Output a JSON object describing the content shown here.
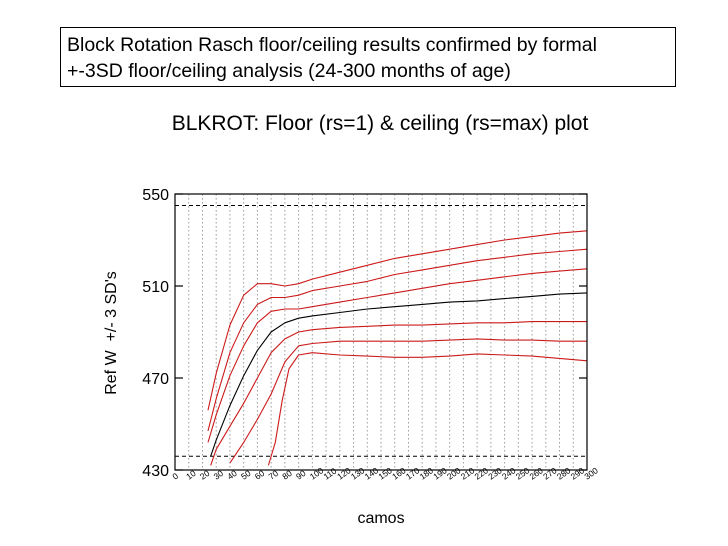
{
  "caption": {
    "line1": "Block Rotation Rasch floor/ceiling results confirmed by formal",
    "line2": "+-3SD floor/ceiling analysis (24-300 months of age)"
  },
  "colors": {
    "mean_line": "#000000",
    "sd_lines": "#cc1a1a",
    "grid": "#9a9a9a",
    "limit_lines": "#000000"
  },
  "chart_data": {
    "type": "line",
    "title": "BLKROT: Floor (rs=1) & ceiling (rs=max) plot",
    "xlabel": "camos",
    "ylabel": "Ref W  +/- 3 SD's",
    "xlim": [
      0,
      300
    ],
    "ylim": [
      430,
      550
    ],
    "x_ticks": [
      0,
      10,
      20,
      30,
      40,
      50,
      60,
      70,
      80,
      90,
      100,
      110,
      120,
      130,
      140,
      150,
      160,
      170,
      180,
      190,
      200,
      210,
      220,
      230,
      240,
      250,
      260,
      270,
      280,
      290,
      300
    ],
    "y_ticks": [
      430,
      470,
      510,
      550
    ],
    "grid": "vertical dotted every 10",
    "reference_lines": [
      {
        "name": "ceiling",
        "y": 545,
        "style": "dashed"
      },
      {
        "name": "floor",
        "y": 436,
        "style": "dashed"
      }
    ],
    "series": [
      {
        "color": "red",
        "points": [
          [
            24,
            456
          ],
          [
            30,
            472
          ],
          [
            40,
            493
          ],
          [
            50,
            506
          ],
          [
            60,
            511
          ],
          [
            70,
            511
          ],
          [
            80,
            510
          ],
          [
            90,
            511
          ],
          [
            100,
            513
          ],
          [
            120,
            516
          ],
          [
            140,
            519
          ],
          [
            160,
            522
          ],
          [
            180,
            524
          ],
          [
            200,
            526
          ],
          [
            220,
            528
          ],
          [
            240,
            530
          ],
          [
            260,
            531.5
          ],
          [
            280,
            533
          ],
          [
            300,
            534
          ]
        ]
      },
      {
        "color": "red",
        "points": [
          [
            24,
            447
          ],
          [
            30,
            461
          ],
          [
            40,
            481
          ],
          [
            50,
            494
          ],
          [
            60,
            502
          ],
          [
            70,
            505
          ],
          [
            80,
            505
          ],
          [
            90,
            506
          ],
          [
            100,
            508
          ],
          [
            120,
            510
          ],
          [
            140,
            512
          ],
          [
            160,
            515
          ],
          [
            180,
            517
          ],
          [
            200,
            519
          ],
          [
            220,
            521
          ],
          [
            240,
            522.5
          ],
          [
            260,
            524
          ],
          [
            280,
            525
          ],
          [
            300,
            526
          ]
        ]
      },
      {
        "color": "red",
        "points": [
          [
            24,
            442
          ],
          [
            30,
            454
          ],
          [
            40,
            471
          ],
          [
            50,
            484
          ],
          [
            60,
            494
          ],
          [
            70,
            499
          ],
          [
            80,
            500
          ],
          [
            90,
            500
          ],
          [
            100,
            501
          ],
          [
            120,
            503
          ],
          [
            140,
            505
          ],
          [
            160,
            507
          ],
          [
            180,
            509
          ],
          [
            200,
            511
          ],
          [
            220,
            512.5
          ],
          [
            240,
            514
          ],
          [
            260,
            515.5
          ],
          [
            280,
            516.5
          ],
          [
            300,
            517.5
          ]
        ]
      },
      {
        "color": "black",
        "points": [
          [
            26,
            436
          ],
          [
            30,
            443
          ],
          [
            40,
            458
          ],
          [
            50,
            471
          ],
          [
            60,
            482
          ],
          [
            70,
            490
          ],
          [
            80,
            494
          ],
          [
            90,
            496
          ],
          [
            100,
            497
          ],
          [
            120,
            498.5
          ],
          [
            140,
            500
          ],
          [
            160,
            501
          ],
          [
            180,
            502
          ],
          [
            200,
            503
          ],
          [
            220,
            503.5
          ],
          [
            240,
            504.5
          ],
          [
            260,
            505.5
          ],
          [
            280,
            506.5
          ],
          [
            300,
            507
          ]
        ]
      },
      {
        "color": "red",
        "points": [
          [
            26,
            432
          ],
          [
            30,
            439
          ],
          [
            40,
            449
          ],
          [
            50,
            459
          ],
          [
            60,
            470
          ],
          [
            70,
            481
          ],
          [
            80,
            487
          ],
          [
            90,
            490
          ],
          [
            100,
            491
          ],
          [
            120,
            492
          ],
          [
            140,
            492.5
          ],
          [
            160,
            493
          ],
          [
            180,
            493
          ],
          [
            200,
            493.5
          ],
          [
            220,
            494
          ],
          [
            240,
            494
          ],
          [
            260,
            494.5
          ],
          [
            280,
            494.5
          ],
          [
            300,
            494.5
          ]
        ]
      },
      {
        "color": "red",
        "points": [
          [
            40,
            433
          ],
          [
            50,
            442
          ],
          [
            60,
            452
          ],
          [
            70,
            463
          ],
          [
            80,
            477
          ],
          [
            90,
            484
          ],
          [
            100,
            485
          ],
          [
            120,
            486
          ],
          [
            140,
            486
          ],
          [
            160,
            486
          ],
          [
            180,
            486
          ],
          [
            200,
            486.5
          ],
          [
            220,
            487
          ],
          [
            240,
            486.5
          ],
          [
            260,
            486.5
          ],
          [
            280,
            486
          ],
          [
            300,
            486
          ]
        ]
      },
      {
        "color": "red",
        "points": [
          [
            68,
            432
          ],
          [
            73,
            442
          ],
          [
            78,
            460
          ],
          [
            83,
            474
          ],
          [
            90,
            480
          ],
          [
            100,
            481
          ],
          [
            120,
            480
          ],
          [
            140,
            479.5
          ],
          [
            160,
            479
          ],
          [
            180,
            479
          ],
          [
            200,
            479.5
          ],
          [
            220,
            480.5
          ],
          [
            240,
            480
          ],
          [
            260,
            479.5
          ],
          [
            280,
            478.5
          ],
          [
            300,
            477.5
          ]
        ]
      }
    ]
  }
}
